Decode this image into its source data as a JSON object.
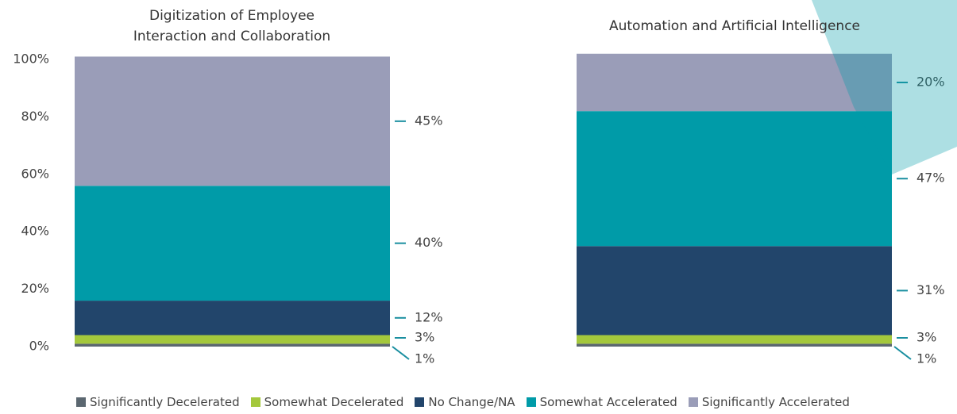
{
  "chart_data": [
    {
      "type": "stacked-bar",
      "title": "Digitization of Employee Interaction and Collaboration",
      "ylim": [
        0,
        100
      ],
      "yticks": [
        {
          "value": 0,
          "label": "0%"
        },
        {
          "value": 20,
          "label": "20%"
        },
        {
          "value": 40,
          "label": "40%"
        },
        {
          "value": 60,
          "label": "60%"
        },
        {
          "value": 80,
          "label": "80%"
        },
        {
          "value": 100,
          "label": "100%"
        }
      ],
      "series": [
        {
          "name": "Significantly Decelerated",
          "color": "#5b6770",
          "values": [
            1
          ],
          "value_labels": [
            "1%"
          ]
        },
        {
          "name": "Somewhat Decelerated",
          "color": "#a4c83c",
          "values": [
            3
          ],
          "value_labels": [
            "3%"
          ]
        },
        {
          "name": "No Change/NA",
          "color": "#22456b",
          "values": [
            12
          ],
          "value_labels": [
            "12%"
          ]
        },
        {
          "name": "Somewhat Accelerated",
          "color": "#009ba8",
          "values": [
            40
          ],
          "value_labels": [
            "40%"
          ]
        },
        {
          "name": "Significantly Accelerated",
          "color": "#9a9db8",
          "values": [
            45
          ],
          "value_labels": [
            "45%"
          ]
        }
      ]
    },
    {
      "type": "stacked-bar",
      "title": "Automation and Artificial Intelligence",
      "ylim": [
        0,
        100
      ],
      "series": [
        {
          "name": "Significantly Decelerated",
          "color": "#5b6770",
          "values": [
            1
          ],
          "value_labels": [
            "1%"
          ]
        },
        {
          "name": "Somewhat Decelerated",
          "color": "#a4c83c",
          "values": [
            3
          ],
          "value_labels": [
            "3%"
          ]
        },
        {
          "name": "No Change/NA",
          "color": "#22456b",
          "values": [
            31
          ],
          "value_labels": [
            "31%"
          ]
        },
        {
          "name": "Somewhat Accelerated",
          "color": "#009ba8",
          "values": [
            47
          ],
          "value_labels": [
            "47%"
          ]
        },
        {
          "name": "Significantly Accelerated",
          "color": "#9a9db8",
          "values": [
            20
          ],
          "value_labels": [
            "20%"
          ]
        }
      ]
    }
  ]
}
